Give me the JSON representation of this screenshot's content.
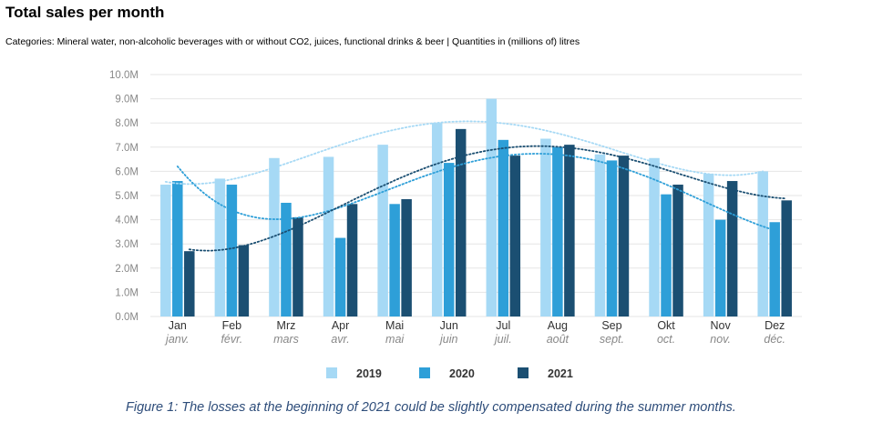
{
  "title": "Total sales per month",
  "subtitle": "Categories: Mineral water, non-alcoholic beverages with or without CO2, juices, functional drinks & beer | Quantities in (millions of) litres",
  "caption": "Figure 1: The losses at the beginning of 2021 could be slightly compensated during the summer months.",
  "chart_data": {
    "type": "bar",
    "categories": [
      "Jan",
      "Feb",
      "Mrz",
      "Apr",
      "Mai",
      "Jun",
      "Jul",
      "Aug",
      "Sep",
      "Okt",
      "Nov",
      "Dez"
    ],
    "categories_secondary": [
      "janv.",
      "févr.",
      "mars",
      "avr.",
      "mai",
      "juin",
      "juil.",
      "août",
      "sept.",
      "oct.",
      "nov.",
      "déc."
    ],
    "y_ticks": [
      "0.0M",
      "1.0M",
      "2.0M",
      "3.0M",
      "4.0M",
      "5.0M",
      "6.0M",
      "7.0M",
      "8.0M",
      "9.0M",
      "10.0M"
    ],
    "ylim": [
      0,
      10
    ],
    "grid": true,
    "legend_position": "bottom",
    "series": [
      {
        "name": "2019",
        "color": "#a6d9f5",
        "values": [
          5.45,
          5.7,
          6.55,
          6.6,
          7.1,
          8.0,
          9.0,
          7.35,
          6.7,
          6.55,
          5.9,
          6.0
        ]
      },
      {
        "name": "2020",
        "color": "#2e9fd8",
        "values": [
          5.6,
          5.45,
          4.7,
          3.25,
          4.65,
          6.35,
          7.3,
          7.0,
          6.45,
          5.05,
          4.0,
          3.9
        ]
      },
      {
        "name": "2021",
        "color": "#1b4f72",
        "values": [
          2.7,
          2.95,
          4.1,
          4.65,
          4.85,
          7.75,
          6.65,
          7.1,
          6.65,
          5.45,
          5.6,
          4.8
        ]
      }
    ],
    "trendlines": "dotted polynomial trendline per series"
  }
}
